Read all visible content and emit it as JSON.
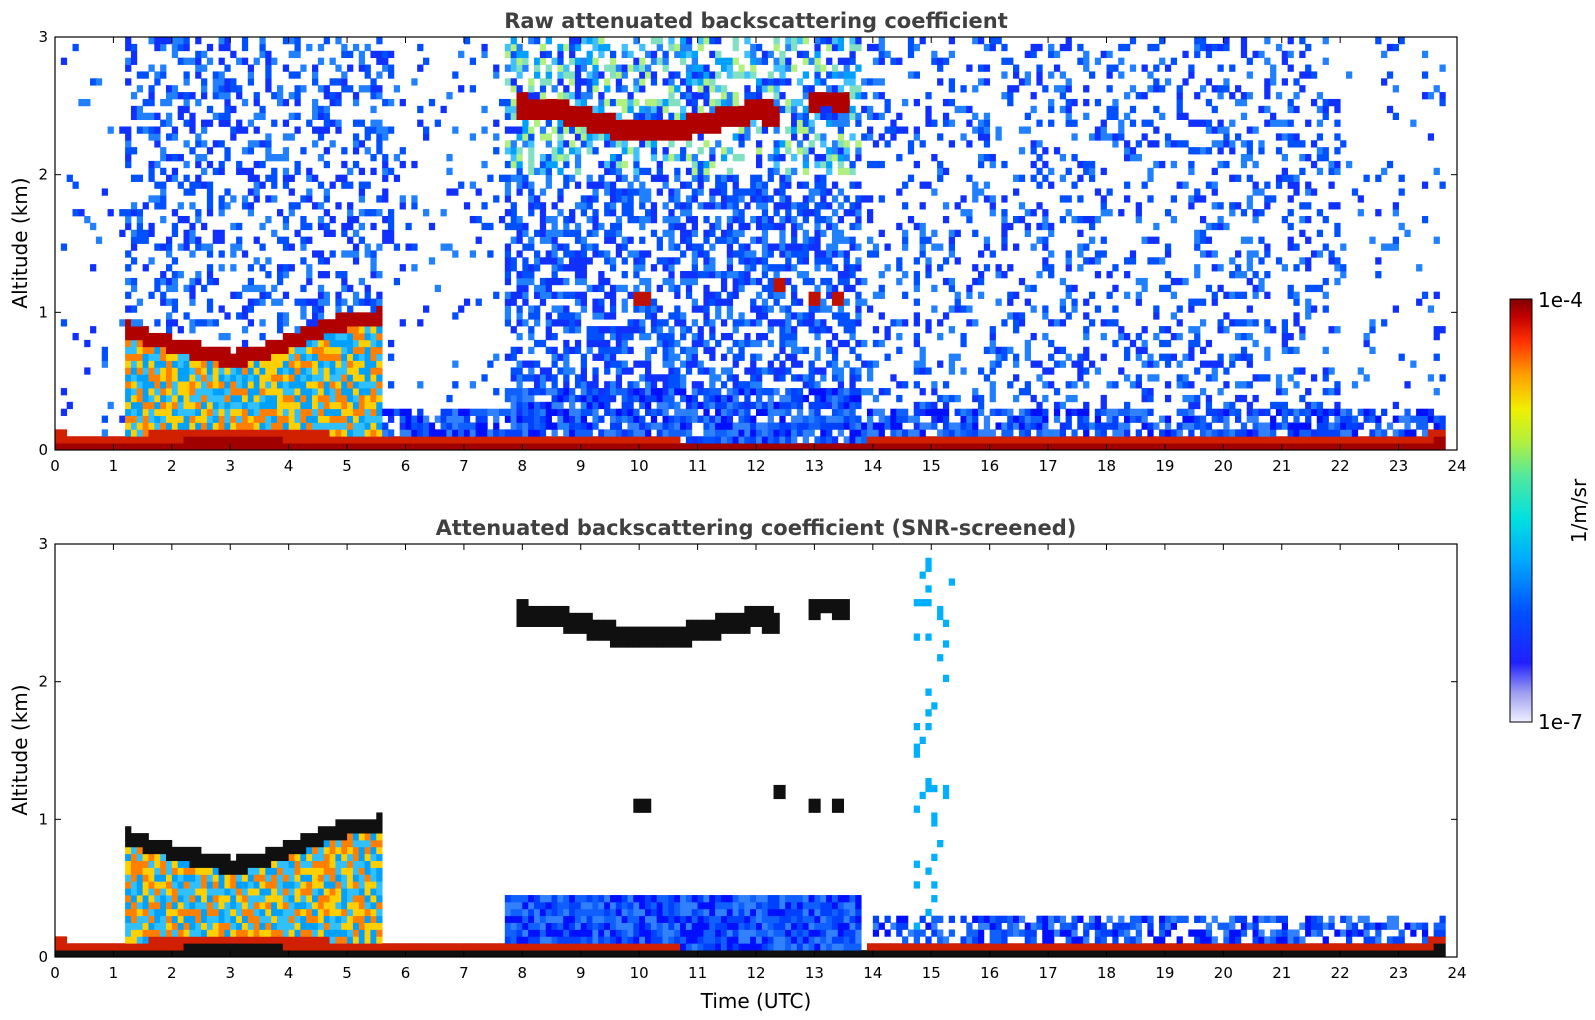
{
  "chart_data": [
    {
      "type": "heatmap",
      "title": "Raw attenuated backscattering coefficient",
      "xlabel": "",
      "ylabel": "Altitude (km)",
      "xlim": [
        0,
        24
      ],
      "ylim": [
        0,
        3
      ],
      "xticks": [
        "0",
        "1",
        "2",
        "3",
        "4",
        "5",
        "6",
        "7",
        "8",
        "9",
        "10",
        "11",
        "12",
        "13",
        "14",
        "15",
        "16",
        "17",
        "18",
        "19",
        "20",
        "21",
        "22",
        "23",
        "24"
      ],
      "yticks": [
        "0",
        "1",
        "2",
        "3"
      ],
      "features": {
        "surface_layer_top_km": [
          [
            0,
            0.13
          ],
          [
            1.1,
            0.1
          ],
          [
            1.3,
            0.12
          ],
          [
            3,
            0.15
          ],
          [
            5,
            0.12
          ],
          [
            6,
            0.08
          ],
          [
            7.7,
            0.08
          ],
          [
            13.8,
            0.07
          ],
          [
            14,
            0.08
          ],
          [
            18,
            0.08
          ],
          [
            20,
            0.08
          ],
          [
            23,
            0.09
          ],
          [
            23.8,
            0.15
          ]
        ],
        "boundary_layer_cloud_km": [
          [
            1.2,
            0.88
          ],
          [
            1.6,
            0.82
          ],
          [
            2.0,
            0.77
          ],
          [
            2.5,
            0.72
          ],
          [
            3.0,
            0.66
          ],
          [
            3.5,
            0.7
          ],
          [
            4.0,
            0.78
          ],
          [
            4.5,
            0.87
          ],
          [
            4.9,
            0.93
          ],
          [
            5.3,
            0.95
          ],
          [
            5.6,
            0.97
          ]
        ],
        "elevated_cloud_km": [
          [
            7.9,
            2.5
          ],
          [
            8.5,
            2.48
          ],
          [
            9.0,
            2.42
          ],
          [
            9.5,
            2.35
          ],
          [
            10.0,
            2.33
          ],
          [
            10.5,
            2.32
          ],
          [
            11.0,
            2.36
          ],
          [
            11.5,
            2.42
          ],
          [
            12.0,
            2.46
          ],
          [
            12.4,
            2.44
          ]
        ],
        "elevated_cloud_2_km": [
          [
            12.9,
            2.52
          ],
          [
            13.2,
            2.55
          ],
          [
            13.6,
            2.52
          ]
        ],
        "small_clouds_km": [
          [
            10.05,
            1.12
          ],
          [
            12.4,
            1.18
          ],
          [
            13.0,
            1.08
          ],
          [
            13.4,
            1.12
          ]
        ]
      }
    },
    {
      "type": "heatmap",
      "title": "Attenuated backscattering coefficient (SNR-screened)",
      "xlabel": "Time (UTC)",
      "ylabel": "Altitude (km)",
      "xlim": [
        0,
        24
      ],
      "ylim": [
        0,
        3
      ],
      "xticks": [
        "0",
        "1",
        "2",
        "3",
        "4",
        "5",
        "6",
        "7",
        "8",
        "9",
        "10",
        "11",
        "12",
        "13",
        "14",
        "15",
        "16",
        "17",
        "18",
        "19",
        "20",
        "21",
        "22",
        "23",
        "24"
      ],
      "yticks": [
        "0",
        "1",
        "2",
        "3"
      ]
    }
  ],
  "colorbar": {
    "label": "1/m/sr",
    "max_label": "1e-4",
    "min_label": "1e-7",
    "scale": "log",
    "colors": [
      "#e8e8f8",
      "#b4b4f0",
      "#8080ff",
      "#0000ff",
      "#0060ff",
      "#00b0ff",
      "#00e0e0",
      "#40e0a0",
      "#a0f040",
      "#f0f000",
      "#ffa000",
      "#ff4000",
      "#d00000",
      "#800000"
    ]
  }
}
